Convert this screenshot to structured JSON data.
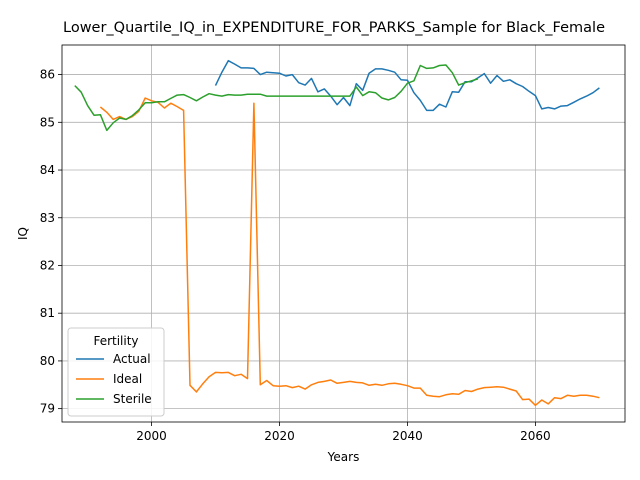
{
  "chart_data": {
    "type": "line",
    "title": "Lower_Quartile_IQ_in_EXPENDITURE_FOR_PARKS_Sample for Black_Female",
    "xlabel": "Years",
    "ylabel": "IQ",
    "xlim": [
      1986,
      2074
    ],
    "ylim": [
      78.72,
      86.62
    ],
    "xticks": [
      2000,
      2020,
      2040,
      2060
    ],
    "yticks": [
      79,
      80,
      81,
      82,
      83,
      84,
      85,
      86
    ],
    "grid": true,
    "legend": {
      "title": "Fertility",
      "placement": "lower-left"
    },
    "series": [
      {
        "name": "Actual",
        "color": "#1f77b4",
        "x": [
          2010,
          2011,
          2012,
          2013,
          2014,
          2015,
          2016,
          2017,
          2018,
          2019,
          2020,
          2021,
          2022,
          2023,
          2024,
          2025,
          2026,
          2027,
          2028,
          2029,
          2030,
          2031,
          2032,
          2033,
          2034,
          2035,
          2036,
          2037,
          2038,
          2039,
          2040,
          2041,
          2042,
          2043,
          2044,
          2045,
          2046,
          2047,
          2048,
          2049,
          2050,
          2051,
          2052,
          2053,
          2054,
          2055,
          2056,
          2057,
          2058,
          2059,
          2060,
          2061,
          2062,
          2063,
          2064,
          2065,
          2066,
          2067,
          2068,
          2069,
          2070
        ],
        "values": [
          85.77,
          86.05,
          86.29,
          86.22,
          86.14,
          86.14,
          86.13,
          86.0,
          86.05,
          86.04,
          86.03,
          85.97,
          86.0,
          85.83,
          85.78,
          85.92,
          85.64,
          85.7,
          85.55,
          85.37,
          85.52,
          85.35,
          85.81,
          85.67,
          86.03,
          86.12,
          86.12,
          86.09,
          86.05,
          85.89,
          85.88,
          85.62,
          85.46,
          85.25,
          85.25,
          85.38,
          85.32,
          85.64,
          85.63,
          85.85,
          85.85,
          85.93,
          86.02,
          85.82,
          85.98,
          85.86,
          85.89,
          85.81,
          85.75,
          85.65,
          85.56,
          85.28,
          85.31,
          85.28,
          85.34,
          85.35,
          85.42,
          85.49,
          85.55,
          85.62,
          85.72
        ]
      },
      {
        "name": "Ideal",
        "color": "#ff7f0e",
        "x": [
          1992,
          1993,
          1994,
          1995,
          1996,
          1997,
          1998,
          1999,
          2000,
          2001,
          2002,
          2003,
          2004,
          2005,
          2006,
          2007,
          2008,
          2009,
          2010,
          2011,
          2012,
          2013,
          2014,
          2015,
          2016,
          2017,
          2018,
          2019,
          2020,
          2021,
          2022,
          2023,
          2024,
          2025,
          2026,
          2027,
          2028,
          2029,
          2030,
          2031,
          2032,
          2033,
          2034,
          2035,
          2036,
          2037,
          2038,
          2039,
          2040,
          2041,
          2042,
          2043,
          2044,
          2045,
          2046,
          2047,
          2048,
          2049,
          2050,
          2051,
          2052,
          2053,
          2054,
          2055,
          2056,
          2057,
          2058,
          2059,
          2060,
          2061,
          2062,
          2063,
          2064,
          2065,
          2066,
          2067,
          2068,
          2069,
          2070
        ],
        "values": [
          85.32,
          85.21,
          85.06,
          85.12,
          85.06,
          85.12,
          85.23,
          85.51,
          85.45,
          85.42,
          85.3,
          85.4,
          85.33,
          85.25,
          79.49,
          79.35,
          79.52,
          79.67,
          79.76,
          79.75,
          79.76,
          79.69,
          79.72,
          79.63,
          85.4,
          79.5,
          79.59,
          79.48,
          79.47,
          79.48,
          79.44,
          79.47,
          79.41,
          79.5,
          79.55,
          79.57,
          79.6,
          79.53,
          79.55,
          79.57,
          79.55,
          79.54,
          79.49,
          79.51,
          79.49,
          79.52,
          79.53,
          79.51,
          79.48,
          79.43,
          79.43,
          79.28,
          79.26,
          79.25,
          79.29,
          79.31,
          79.3,
          79.38,
          79.36,
          79.41,
          79.44,
          79.45,
          79.46,
          79.45,
          79.41,
          79.37,
          79.19,
          79.2,
          79.07,
          79.18,
          79.1,
          79.23,
          79.21,
          79.28,
          79.26,
          79.28,
          79.28,
          79.26,
          79.23
        ]
      },
      {
        "name": "Sterile",
        "color": "#2ca02c",
        "x": [
          1988,
          1989,
          1990,
          1991,
          1992,
          1993,
          1994,
          1995,
          1996,
          1997,
          1998,
          1999,
          2000,
          2001,
          2002,
          2003,
          2004,
          2005,
          2006,
          2007,
          2008,
          2009,
          2010,
          2011,
          2012,
          2013,
          2014,
          2015,
          2016,
          2017,
          2018,
          2019,
          2020,
          2021,
          2022,
          2023,
          2024,
          2025,
          2026,
          2027,
          2028,
          2029,
          2030,
          2031,
          2032,
          2033,
          2034,
          2035,
          2036,
          2037,
          2038,
          2039,
          2040,
          2041,
          2042,
          2043,
          2044,
          2045,
          2046,
          2047,
          2048,
          2049,
          2050,
          2051
        ],
        "values": [
          85.77,
          85.63,
          85.35,
          85.15,
          85.16,
          84.83,
          84.99,
          85.09,
          85.06,
          85.14,
          85.26,
          85.41,
          85.41,
          85.43,
          85.43,
          85.5,
          85.57,
          85.58,
          85.52,
          85.45,
          85.53,
          85.6,
          85.57,
          85.55,
          85.58,
          85.57,
          85.57,
          85.59,
          85.59,
          85.59,
          85.55,
          85.55,
          85.55,
          85.55,
          85.55,
          85.55,
          85.55,
          85.55,
          85.55,
          85.55,
          85.55,
          85.55,
          85.55,
          85.55,
          85.74,
          85.56,
          85.64,
          85.62,
          85.51,
          85.47,
          85.52,
          85.65,
          85.82,
          85.87,
          86.19,
          86.13,
          86.14,
          86.19,
          86.2,
          86.04,
          85.78,
          85.83,
          85.87,
          85.91
        ]
      }
    ]
  }
}
